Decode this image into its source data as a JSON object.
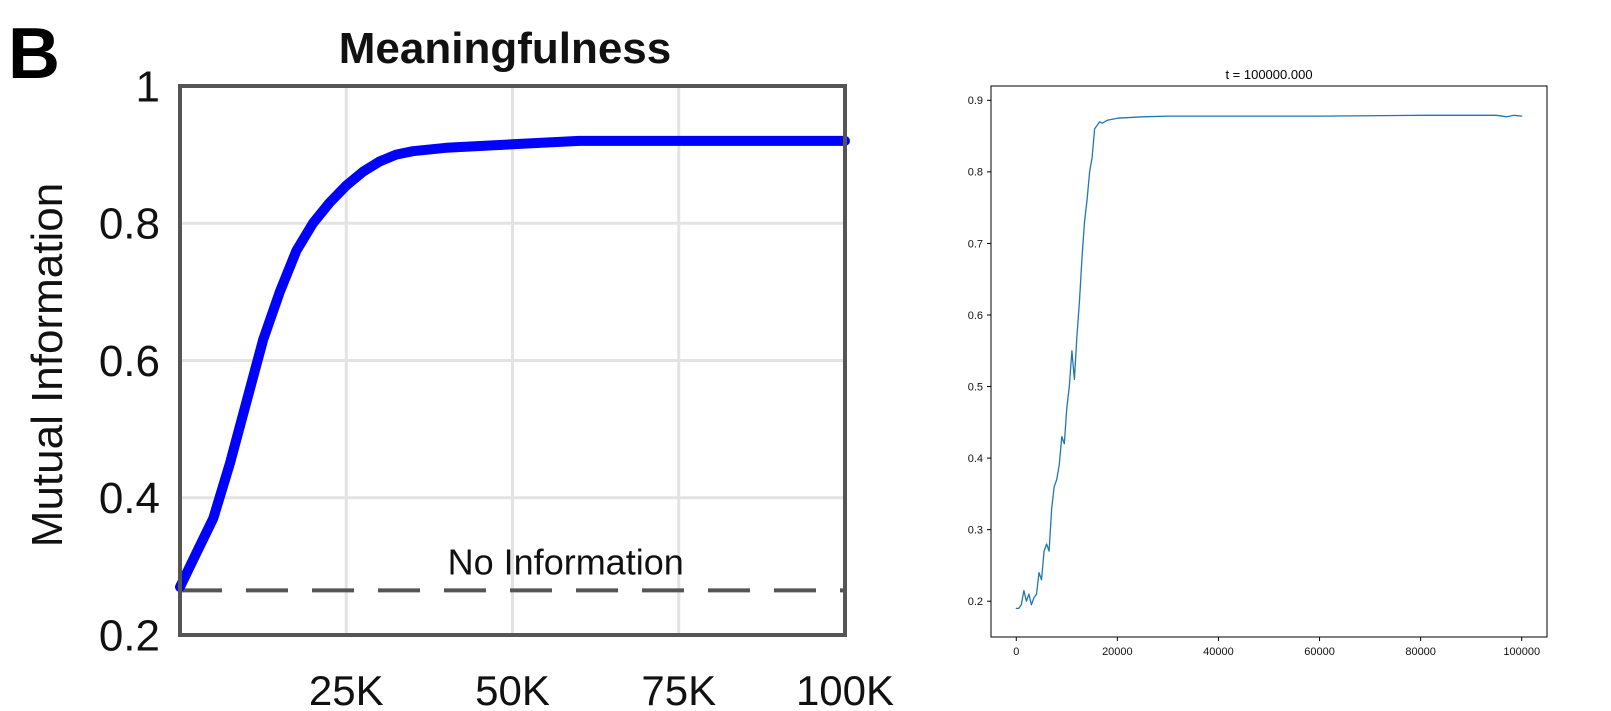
{
  "panel_b": {
    "label": "B"
  },
  "chart_data": [
    {
      "type": "line",
      "title": "Meaningfulness",
      "xlabel": "",
      "ylabel": "Mutual Information",
      "xlim": [
        0,
        100000
      ],
      "ylim": [
        0.2,
        1.0
      ],
      "grid": true,
      "xticks": [
        25000,
        50000,
        75000,
        100000
      ],
      "xtick_labels": [
        "25K",
        "50K",
        "75K",
        "100K"
      ],
      "yticks": [
        0.2,
        0.4,
        0.6,
        0.8,
        1.0
      ],
      "ytick_labels": [
        "0.2",
        "0.4",
        "0.6",
        "0.8",
        "1"
      ],
      "series": [
        {
          "name": "Mutual Information",
          "color": "#0000ff",
          "x": [
            0,
            2500,
            5000,
            7500,
            10000,
            12500,
            15000,
            17500,
            20000,
            22500,
            25000,
            27500,
            30000,
            32500,
            35000,
            40000,
            50000,
            60000,
            75000,
            100000
          ],
          "y": [
            0.27,
            0.32,
            0.37,
            0.45,
            0.54,
            0.63,
            0.7,
            0.76,
            0.8,
            0.83,
            0.855,
            0.875,
            0.89,
            0.9,
            0.905,
            0.91,
            0.915,
            0.92,
            0.92,
            0.92
          ]
        }
      ],
      "reference_line": {
        "y": 0.265,
        "label": "No Information",
        "style": "dashed",
        "color": "#555555"
      }
    },
    {
      "type": "line",
      "title": "t = 100000.000",
      "xlabel": "",
      "ylabel": "",
      "xlim": [
        -5000,
        105000
      ],
      "ylim": [
        0.15,
        0.92
      ],
      "grid": false,
      "xticks": [
        0,
        20000,
        40000,
        60000,
        80000,
        100000
      ],
      "xtick_labels": [
        "0",
        "20000",
        "40000",
        "60000",
        "80000",
        "100000"
      ],
      "yticks": [
        0.2,
        0.3,
        0.4,
        0.5,
        0.6,
        0.7,
        0.8,
        0.9
      ],
      "ytick_labels": [
        "0.2",
        "0.3",
        "0.4",
        "0.5",
        "0.6",
        "0.7",
        "0.8",
        "0.9"
      ],
      "series": [
        {
          "name": "series",
          "color": "#1f77b4",
          "x": [
            0,
            500,
            1000,
            1500,
            2000,
            2500,
            3000,
            3500,
            4000,
            4500,
            5000,
            5500,
            6000,
            6500,
            7000,
            7500,
            8000,
            8500,
            9000,
            9500,
            10000,
            10500,
            11000,
            11500,
            12000,
            12500,
            13000,
            13500,
            14000,
            14500,
            15000,
            15500,
            16000,
            16500,
            17000,
            18000,
            20000,
            25000,
            30000,
            40000,
            60000,
            80000,
            95000,
            97000,
            98500,
            100000
          ],
          "y": [
            0.19,
            0.19,
            0.195,
            0.215,
            0.2,
            0.21,
            0.195,
            0.205,
            0.21,
            0.24,
            0.23,
            0.27,
            0.28,
            0.27,
            0.33,
            0.36,
            0.37,
            0.39,
            0.43,
            0.42,
            0.47,
            0.5,
            0.55,
            0.51,
            0.57,
            0.62,
            0.68,
            0.73,
            0.76,
            0.8,
            0.82,
            0.86,
            0.865,
            0.87,
            0.868,
            0.872,
            0.875,
            0.877,
            0.878,
            0.878,
            0.878,
            0.879,
            0.879,
            0.877,
            0.879,
            0.878
          ]
        }
      ]
    }
  ]
}
